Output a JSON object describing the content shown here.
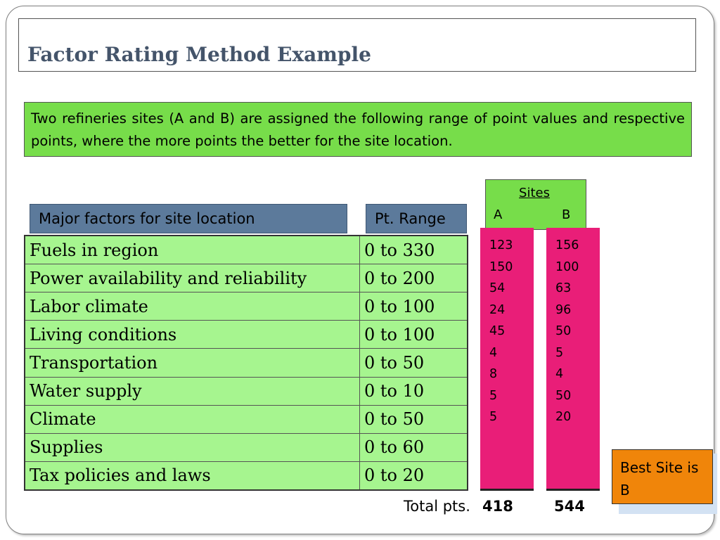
{
  "slide": {
    "title": "Factor Rating Method Example",
    "intro": "Two refineries sites (A and B) are assigned the following range of point values and respective points, where the more points the better for the site location."
  },
  "table": {
    "headers": {
      "factors": "Major factors for site location",
      "range": "Pt. Range"
    },
    "rows": [
      {
        "factor": "Fuels in region",
        "range": "0 to 330"
      },
      {
        "factor": "Power availability and reliability",
        "range": "0 to 200"
      },
      {
        "factor": "Labor climate",
        "range": "0 to 100"
      },
      {
        "factor": "Living conditions",
        "range": "0 to 100"
      },
      {
        "factor": "Transportation",
        "range": "0 to 50"
      },
      {
        "factor": "Water supply",
        "range": "0 to 10"
      },
      {
        "factor": "Climate",
        "range": "0 to 50"
      },
      {
        "factor": "Supplies",
        "range": "0 to 60"
      },
      {
        "factor": "Tax policies and laws",
        "range": "0 to 20"
      }
    ]
  },
  "sites": {
    "title": "Sites",
    "a": {
      "label": "A",
      "points": [
        "123",
        "150",
        "54",
        "24",
        "45",
        "4",
        "8",
        "5",
        "5"
      ],
      "total": "418"
    },
    "b": {
      "label": "B",
      "points": [
        "156",
        "100",
        "63",
        "96",
        "50",
        "5",
        "4",
        "50",
        "20"
      ],
      "total": "544"
    },
    "total_label": "Total pts."
  },
  "conclusion": {
    "text": "Best Site is B"
  },
  "colors": {
    "title": "#44546a",
    "intro_bg": "#77dd4a",
    "header_bg": "#5c7a9b",
    "table_bg": "#a6f58f",
    "site_bar": "#e91e78",
    "conclusion_bg": "#f0850a"
  }
}
